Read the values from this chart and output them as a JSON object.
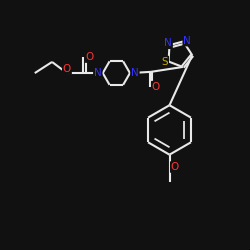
{
  "background_color": "#111111",
  "bond_color": "#e8e8e8",
  "atom_colors": {
    "O": "#ff3333",
    "N": "#3333ff",
    "S": "#ccaa00",
    "C": "#e8e8e8"
  },
  "figsize": [
    2.5,
    2.5
  ],
  "dpi": 100
}
